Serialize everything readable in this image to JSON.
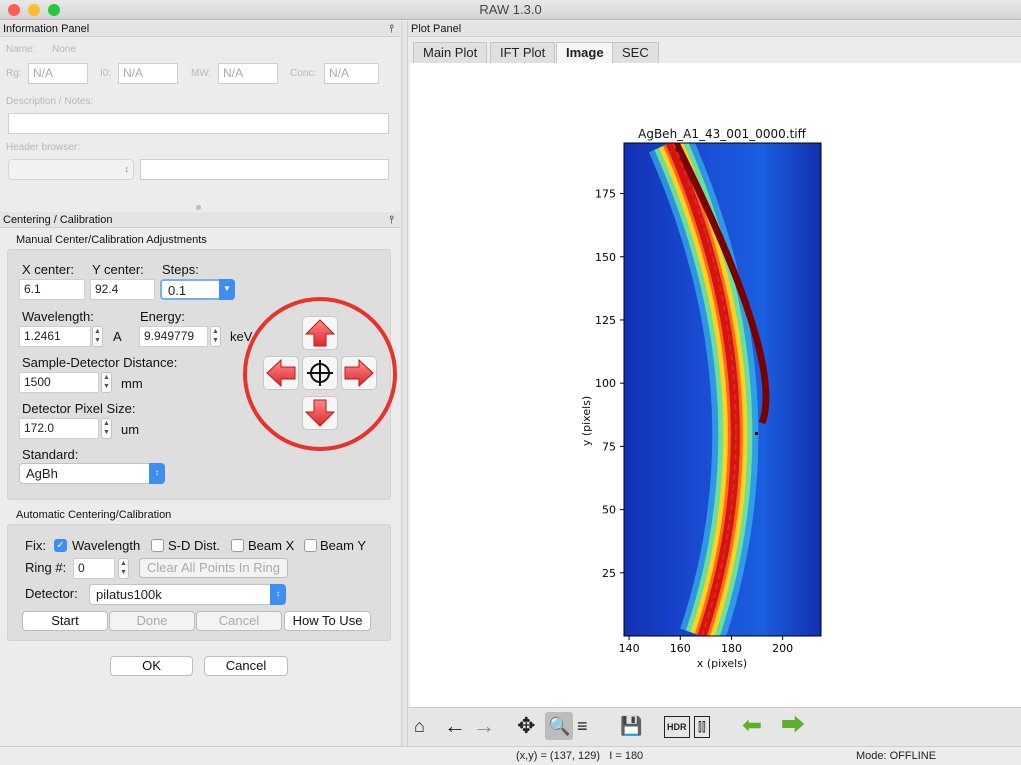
{
  "window": {
    "title": "RAW 1.3.0"
  },
  "info_panel": {
    "title": "Information Panel",
    "name_label": "Name:",
    "name_value": "None",
    "rg_label": "Rg:",
    "rg_value": "N/A",
    "i0_label": "I0:",
    "i0_value": "N/A",
    "mw_label": "MW:",
    "mw_value": "N/A",
    "conc_label": "Conc:",
    "conc_value": "N/A",
    "desc_label": "Description / Notes:",
    "header_label": "Header browser:"
  },
  "calib": {
    "title": "Centering / Calibration",
    "manual": {
      "title": "Manual Center/Calibration Adjustments",
      "x_center_label": "X center:",
      "x_center": "6.1",
      "y_center_label": "Y center:",
      "y_center": "92.4",
      "steps_label": "Steps:",
      "steps": "0.1",
      "wavelength_label": "Wavelength:",
      "wavelength": "1.2461",
      "wavelength_unit": "A",
      "energy_label": "Energy:",
      "energy": "9.949779",
      "energy_unit": "keV",
      "sdd_label": "Sample-Detector Distance:",
      "sdd": "1500",
      "sdd_unit": "mm",
      "pix_label": "Detector Pixel Size:",
      "pix": "172.0",
      "pix_unit": "um",
      "standard_label": "Standard:",
      "standard": "AgBh"
    },
    "auto": {
      "title": "Automatic Centering/Calibration",
      "fix_label": "Fix:",
      "fix_wavelength": "Wavelength",
      "fix_sd": "S-D Dist.",
      "fix_beamx": "Beam X",
      "fix_beamy": "Beam Y",
      "ring_label": "Ring #:",
      "ring": "0",
      "clear_btn": "Clear All Points In Ring",
      "detector_label": "Detector:",
      "detector": "pilatus100k",
      "start": "Start",
      "done": "Done",
      "cancel": "Cancel",
      "howto": "How To Use"
    },
    "ok": "OK",
    "cancel": "Cancel"
  },
  "plot_panel": {
    "title": "Plot Panel",
    "tabs": [
      "Main Plot",
      "IFT Plot",
      "Image",
      "SEC"
    ],
    "active_tab": "Image",
    "image_title": "AgBeh_A1_43_001_0000.tiff",
    "xlabel": "x (pixels)",
    "ylabel": "y (pixels)",
    "xticks": [
      "140",
      "160",
      "180",
      "200"
    ],
    "yticks": [
      "25",
      "50",
      "75",
      "100",
      "125",
      "150",
      "175"
    ],
    "x_range": [
      138,
      215
    ],
    "y_range": [
      0,
      195
    ],
    "colors": {
      "background": "#1432b8",
      "ring_core": "#8b0000",
      "ring_outer": "#ffd21e",
      "fit_line": "#e0262b"
    }
  },
  "toolbar_icons": [
    "home-icon",
    "back-icon",
    "forward-icon",
    "pan-icon",
    "zoom-icon",
    "configure-icon",
    "save-icon",
    "hdr-icon",
    "sliders-icon",
    "previous-image-icon",
    "next-image-icon"
  ],
  "toolbar": {
    "hdr": "HDR"
  },
  "statusbar": {
    "coords": "(x,y) = (137, 129)   I = 180",
    "mode": "Mode: OFFLINE"
  }
}
